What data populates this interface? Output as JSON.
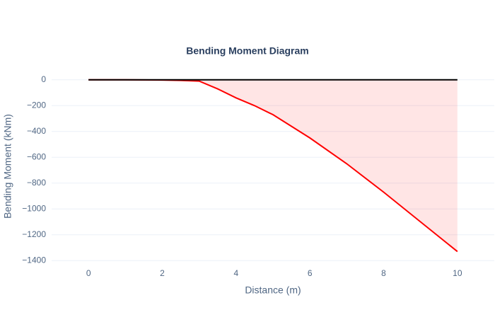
{
  "chart_data": {
    "type": "line",
    "title": "Bending Moment Diagram",
    "x_label": "Distance (m)",
    "y_label": "Bending Moment (kNm)",
    "xlim": [
      -1,
      11
    ],
    "ylim": [
      -1470,
      70
    ],
    "xticks": [
      0,
      2,
      4,
      6,
      8,
      10
    ],
    "yticks": [
      0,
      {
        "value": -200,
        "label": "−200"
      },
      {
        "value": -400,
        "label": "−400"
      },
      {
        "value": -600,
        "label": "−600"
      },
      {
        "value": -800,
        "label": "−800"
      },
      {
        "value": -1000,
        "label": "−1000"
      },
      {
        "value": -1200,
        "label": "−1200"
      },
      {
        "value": -1400,
        "label": "−1400"
      }
    ],
    "grid": true,
    "series": [
      {
        "color": "#ff0000",
        "fill": "rgba(255,0,0,0.1)",
        "x": [
          0,
          1,
          2,
          2.5,
          3,
          3.5,
          4,
          4.5,
          5,
          6,
          7,
          8,
          9,
          10
        ],
        "values": [
          0,
          0,
          -2,
          -5,
          -10,
          -70,
          -140,
          -200,
          -270,
          -450,
          -650,
          -870,
          -1100,
          -1330
        ]
      },
      {
        "color": "#000000",
        "x": [
          0,
          10
        ],
        "values": [
          0,
          0
        ]
      }
    ]
  }
}
